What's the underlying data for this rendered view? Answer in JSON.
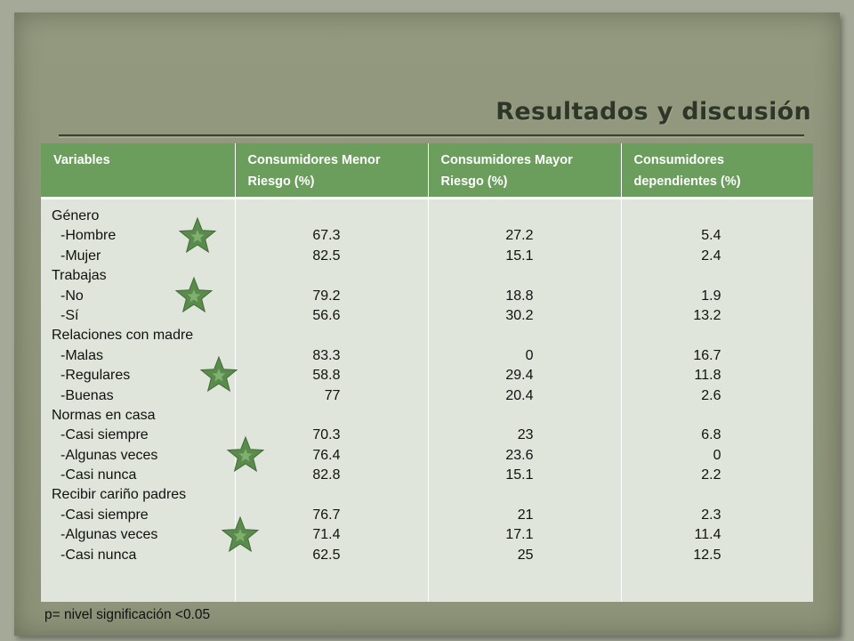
{
  "slide": {
    "title": "Resultados y discusión",
    "footnote": "p= nivel significación <0.05"
  },
  "table": {
    "headers": [
      "Variables",
      "Consumidores Menor Riesgo  (%)",
      "Consumidores Mayor Riesgo (%)",
      "Consumidores dependientes (%)"
    ],
    "rows": [
      {
        "variable": "Género",
        "sub": false,
        "menor": "",
        "mayor": "",
        "dependientes": ""
      },
      {
        "variable": "-Hombre",
        "sub": true,
        "menor": "67.3",
        "mayor": "27.2",
        "dependientes": "5.4"
      },
      {
        "variable": "-Mujer",
        "sub": true,
        "menor": "82.5",
        "mayor": "15.1",
        "dependientes": "2.4"
      },
      {
        "variable": "Trabajas",
        "sub": false,
        "menor": "",
        "mayor": "",
        "dependientes": ""
      },
      {
        "variable": "-No",
        "sub": true,
        "menor": "79.2",
        "mayor": "18.8",
        "dependientes": "1.9"
      },
      {
        "variable": "-Sí",
        "sub": true,
        "menor": "56.6",
        "mayor": "30.2",
        "dependientes": "13.2"
      },
      {
        "variable": "Relaciones con madre",
        "sub": false,
        "menor": "",
        "mayor": "",
        "dependientes": ""
      },
      {
        "variable": "-Malas",
        "sub": true,
        "menor": "83.3",
        "mayor": "0",
        "dependientes": "16.7"
      },
      {
        "variable": "-Regulares",
        "sub": true,
        "menor": "58.8",
        "mayor": "29.4",
        "dependientes": "11.8"
      },
      {
        "variable": "-Buenas",
        "sub": true,
        "menor": "77",
        "mayor": "20.4",
        "dependientes": "2.6"
      },
      {
        "variable": "Normas en casa",
        "sub": false,
        "menor": "",
        "mayor": "",
        "dependientes": ""
      },
      {
        "variable": "-Casi siempre",
        "sub": true,
        "menor": "70.3",
        "mayor": "23",
        "dependientes": "6.8"
      },
      {
        "variable": "-Algunas veces",
        "sub": true,
        "menor": "76.4",
        "mayor": "23.6",
        "dependientes": "0"
      },
      {
        "variable": "-Casi nunca",
        "sub": true,
        "menor": "82.8",
        "mayor": "15.1",
        "dependientes": "2.2"
      },
      {
        "variable": "Recibir cariño padres",
        "sub": false,
        "menor": "",
        "mayor": "",
        "dependientes": ""
      },
      {
        "variable": "-Casi siempre",
        "sub": true,
        "menor": "76.7",
        "mayor": "21",
        "dependientes": "2.3"
      },
      {
        "variable": "-Algunas veces",
        "sub": true,
        "menor": "71.4",
        "mayor": "17.1",
        "dependientes": "11.4"
      },
      {
        "variable": "-Casi nunca",
        "sub": true,
        "menor": "62.5",
        "mayor": "25",
        "dependientes": "12.5"
      }
    ]
  },
  "significance_markers": {
    "icon": "star-icon",
    "color": "#5a8a4c",
    "marked_rows": [
      1,
      4,
      8,
      12,
      16
    ]
  },
  "colors": {
    "header_bg": "#6b9d5c",
    "body_bg": "#dfe5da",
    "slide_bg": "#8f9680"
  }
}
